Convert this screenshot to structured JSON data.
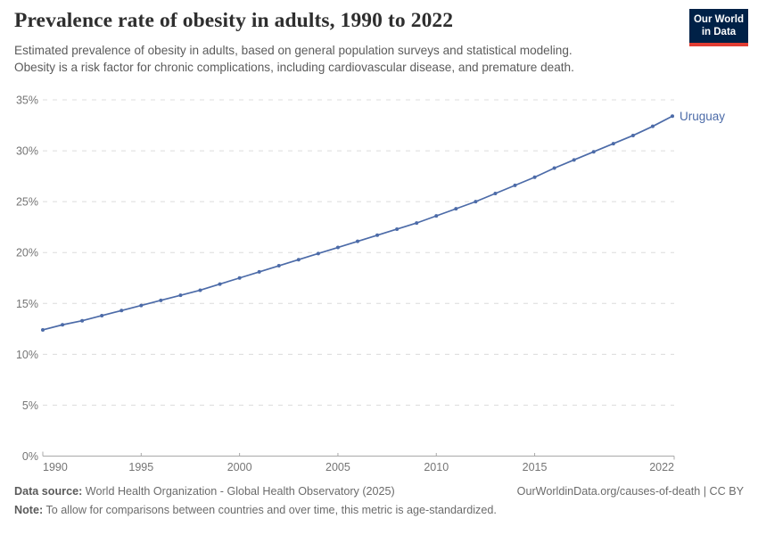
{
  "header": {
    "title": "Prevalence rate of obesity in adults, 1990 to 2022",
    "subtitle_line1": "Estimated prevalence of obesity in adults, based on general population surveys and statistical modeling.",
    "subtitle_line2": "Obesity is a risk factor for chronic complications, including cardiovascular disease, and premature death.",
    "logo": {
      "line1": "Our World",
      "line2": "in Data"
    }
  },
  "chart_data": {
    "type": "line",
    "title": "Prevalence rate of obesity in adults, 1990 to 2022",
    "x": [
      1990,
      1991,
      1992,
      1993,
      1994,
      1995,
      1996,
      1997,
      1998,
      1999,
      2000,
      2001,
      2002,
      2003,
      2004,
      2005,
      2006,
      2007,
      2008,
      2009,
      2010,
      2011,
      2012,
      2013,
      2014,
      2015,
      2016,
      2017,
      2018,
      2019,
      2020,
      2021,
      2022
    ],
    "series": [
      {
        "name": "Uruguay",
        "color": "#4c6ba8",
        "values": [
          12.4,
          12.9,
          13.3,
          13.8,
          14.3,
          14.8,
          15.3,
          15.8,
          16.3,
          16.9,
          17.5,
          18.1,
          18.7,
          19.3,
          19.9,
          20.5,
          21.1,
          21.7,
          22.3,
          22.9,
          23.6,
          24.3,
          25.0,
          25.8,
          26.6,
          27.4,
          28.3,
          29.1,
          29.9,
          30.7,
          31.5,
          32.4,
          33.4
        ]
      }
    ],
    "xlabel": "",
    "ylabel": "",
    "xlim": [
      1990,
      2022
    ],
    "ylim": [
      0,
      35
    ],
    "x_ticks": [
      1990,
      1995,
      2000,
      2005,
      2010,
      2015,
      2022
    ],
    "y_ticks": [
      0,
      5,
      10,
      15,
      20,
      25,
      30,
      35
    ],
    "y_tick_suffix": "%",
    "grid": "horizontal-dashed",
    "legend_position": "end-of-line-label",
    "colors": {
      "grid": "#dcdcdc",
      "axis": "#a9a9a9",
      "tick_text": "#757575"
    }
  },
  "footer": {
    "data_source_label": "Data source:",
    "data_source_text": "World Health Organization - Global Health Observatory (2025)",
    "link": "OurWorldinData.org/causes-of-death | CC BY",
    "note_label": "Note:",
    "note_text": "To allow for comparisons between countries and over time, this metric is age-standardized."
  }
}
